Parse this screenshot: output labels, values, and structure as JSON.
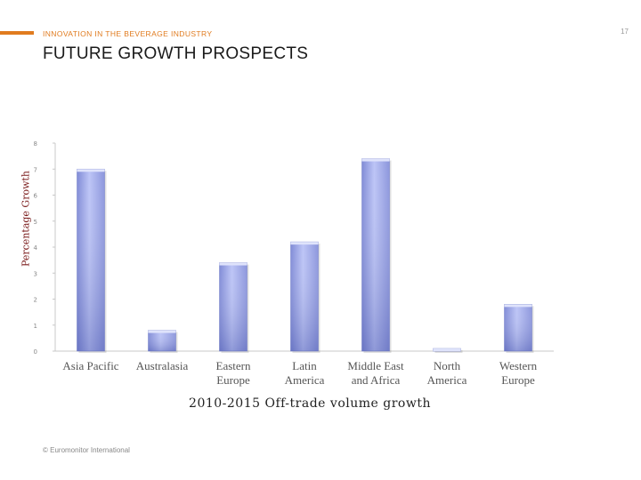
{
  "header": {
    "kicker": "INNOVATION IN THE BEVERAGE INDUSTRY",
    "title": "FUTURE GROWTH PROSPECTS",
    "page_number": "17",
    "accent_color": "#e07b1f"
  },
  "footer": {
    "source": "© Euromonitor International"
  },
  "chart_data": {
    "type": "bar",
    "title": "",
    "xlabel": "2010-2015 Off-trade volume growth",
    "ylabel": "Percentage Growth",
    "ylim": [
      0,
      8
    ],
    "yticks": [
      0,
      1,
      2,
      3,
      4,
      5,
      6,
      7,
      8
    ],
    "grid": false,
    "categories": [
      [
        "Asia Pacific"
      ],
      [
        "Australasia"
      ],
      [
        "Eastern",
        "Europe"
      ],
      [
        "Latin",
        "America"
      ],
      [
        "Middle East",
        "and Africa"
      ],
      [
        "North",
        "America"
      ],
      [
        "Western",
        "Europe"
      ]
    ],
    "values": [
      7.0,
      0.8,
      3.4,
      4.2,
      7.4,
      0.1,
      1.8
    ],
    "bar_color": "#aab4ee"
  }
}
